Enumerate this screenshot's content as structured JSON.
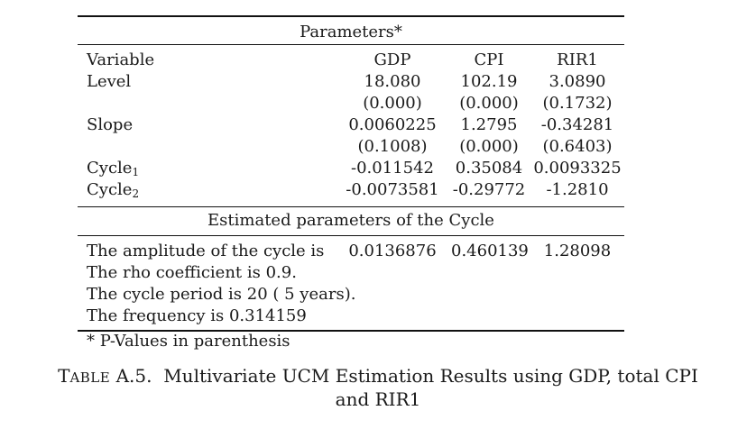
{
  "table": {
    "title": "Parameters*",
    "headers": [
      "Variable",
      "GDP",
      "CPI",
      "RIR1"
    ],
    "rows": [
      {
        "label": "Level",
        "gdp": "18.080",
        "cpi": "102.19",
        "rir": "3.0890"
      },
      {
        "label": "",
        "gdp": "(0.000)",
        "cpi": "(0.000)",
        "rir": "(0.1732)"
      },
      {
        "label": "Slope",
        "gdp": "0.0060225",
        "cpi": "1.2795",
        "rir": "-0.34281"
      },
      {
        "label": "",
        "gdp": "(0.1008)",
        "cpi": "(0.000)",
        "rir": "(0.6403)"
      },
      {
        "label": "Cycle",
        "sub": "1",
        "gdp": "-0.011542",
        "cpi": "0.35084",
        "rir": "0.0093325"
      },
      {
        "label": "Cycle",
        "sub": "2",
        "gdp": "-0.0073581",
        "cpi": "-0.29772",
        "rir": "-1.2810"
      }
    ],
    "section2_title": "Estimated parameters of the Cycle",
    "amplitude": {
      "label": "The amplitude of the cycle is",
      "gdp": "0.0136876",
      "cpi": "0.460139",
      "rir": "1.28098"
    },
    "notes": [
      "The rho coefficient is 0.9.",
      "The cycle period is 20 ( 5 years).",
      "The frequency is 0.314159"
    ],
    "footnote": "* P-Values in parenthesis"
  },
  "caption": {
    "prefix_big": "T",
    "prefix_small": "ABLE",
    "number": "A.5.",
    "line1_rest": "Multivariate UCM Estimation Results using GDP, total CPI",
    "line2": "and RIR1"
  }
}
